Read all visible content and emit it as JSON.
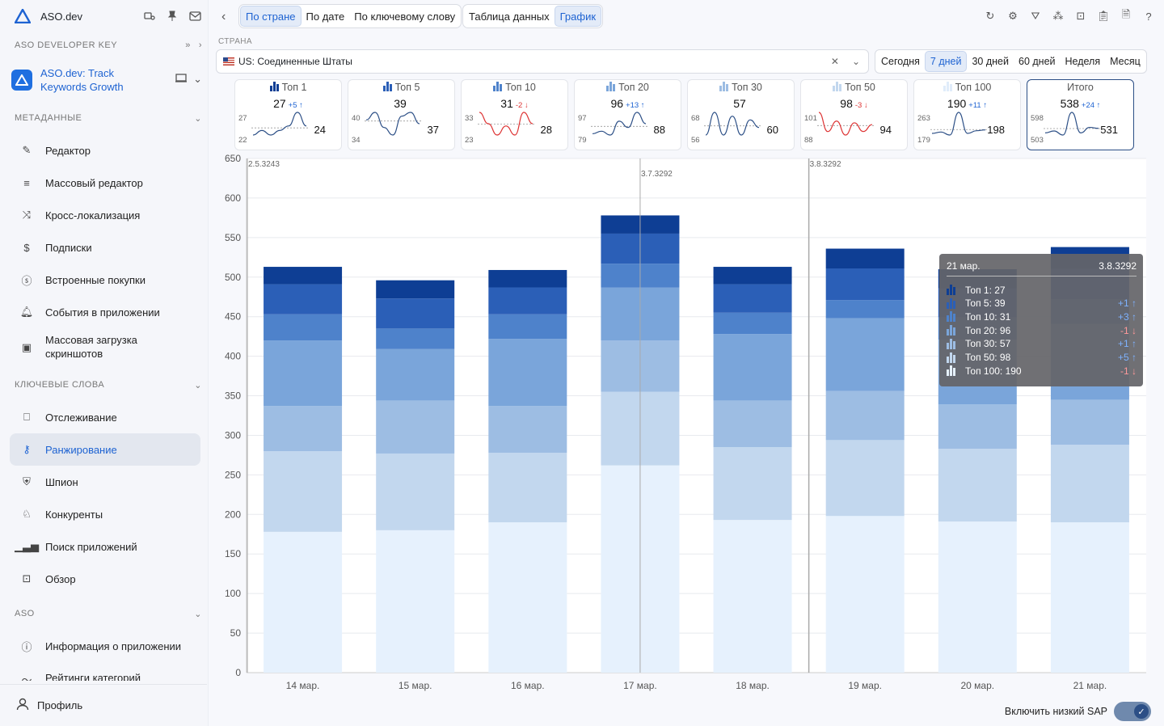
{
  "sidebar": {
    "brand": "ASO.dev",
    "dev_key_label": "ASO DEVELOPER KEY",
    "app_name": "ASO.dev: Track Keywords Growth",
    "sections": {
      "meta": "МЕТАДАННЫЕ",
      "keywords": "КЛЮЧЕВЫЕ СЛОВА",
      "aso": "ASO"
    },
    "meta_items": [
      "Редактор",
      "Массовый редактор",
      "Кросс-локализация",
      "Подписки",
      "Встроенные покупки",
      "События в приложении",
      "Массовая загрузка скриншотов"
    ],
    "keyword_items": [
      "Отслеживание",
      "Ранжирование",
      "Шпион",
      "Конкуренты",
      "Поиск приложений",
      "Обзор"
    ],
    "aso_items": [
      "Информация о приложении",
      "Рейтинги категорий"
    ],
    "profile": "Профиль"
  },
  "toolbar": {
    "view_tabs": [
      "По стране",
      "По дате",
      "По ключевому слову"
    ],
    "mode_tabs": [
      "Таблица данных",
      "График"
    ]
  },
  "filters": {
    "country_label": "СТРАНА",
    "country_value": "US: Соединенные Штаты",
    "periods": [
      "Сегодня",
      "7 дней",
      "30 дней",
      "60 дней",
      "Неделя",
      "Месяц"
    ],
    "active_period": "7 дней"
  },
  "cards": [
    {
      "title": "Топ 1",
      "value": "27",
      "delta": "+5 ↑",
      "dir": "up",
      "max": "27",
      "min": "22",
      "last": "24",
      "spark": [
        22,
        23,
        22,
        23,
        24,
        27,
        24
      ]
    },
    {
      "title": "Топ 5",
      "value": "39",
      "delta": "",
      "dir": "",
      "max": "40",
      "min": "34",
      "last": "37",
      "spark": [
        38,
        40,
        36,
        34,
        39,
        40,
        37
      ]
    },
    {
      "title": "Топ 10",
      "value": "31",
      "delta": "-2 ↓",
      "dir": "dn",
      "max": "33",
      "min": "23",
      "last": "28",
      "spark": [
        33,
        28,
        23,
        27,
        23,
        33,
        28
      ]
    },
    {
      "title": "Топ 20",
      "value": "96",
      "delta": "+13 ↑",
      "dir": "up",
      "max": "97",
      "min": "79",
      "last": "88",
      "spark": [
        80,
        82,
        79,
        90,
        85,
        97,
        88
      ]
    },
    {
      "title": "Топ 30",
      "value": "57",
      "delta": "",
      "dir": "",
      "max": "68",
      "min": "56",
      "last": "60",
      "spark": [
        56,
        68,
        56,
        66,
        56,
        64,
        60
      ]
    },
    {
      "title": "Топ 50",
      "value": "98",
      "delta": "-3 ↓",
      "dir": "dn",
      "max": "101",
      "min": "88",
      "last": "94",
      "spark": [
        101,
        90,
        96,
        88,
        95,
        90,
        94
      ]
    },
    {
      "title": "Топ 100",
      "value": "190",
      "delta": "+11 ↑",
      "dir": "up",
      "max": "263",
      "min": "179",
      "last": "198",
      "spark": [
        185,
        190,
        179,
        263,
        185,
        195,
        198
      ]
    },
    {
      "title": "Итого",
      "value": "538",
      "delta": "+24 ↑",
      "dir": "up",
      "max": "598",
      "min": "503",
      "last": "531",
      "spark": [
        512,
        520,
        503,
        598,
        512,
        535,
        531
      ]
    }
  ],
  "chart_data": {
    "type": "bar",
    "stacked": true,
    "categories": [
      "14 мар.",
      "15 мар.",
      "16 мар.",
      "17 мар.",
      "18 мар.",
      "19 мар.",
      "20 мар.",
      "21 мар."
    ],
    "ylim": [
      0,
      650
    ],
    "yticks": [
      0,
      50,
      100,
      150,
      200,
      250,
      300,
      350,
      400,
      450,
      500,
      550,
      600,
      650
    ],
    "grid": true,
    "series": [
      {
        "name": "Топ 100",
        "color": "#e6f1fd",
        "values": [
          178,
          180,
          190,
          262,
          193,
          198,
          191,
          190
        ]
      },
      {
        "name": "Топ 50",
        "color": "#c2d7ee",
        "values": [
          102,
          97,
          88,
          93,
          92,
          96,
          92,
          98
        ]
      },
      {
        "name": "Топ 30",
        "color": "#9dbde3",
        "values": [
          57,
          67,
          59,
          65,
          59,
          62,
          56,
          57
        ]
      },
      {
        "name": "Топ 20",
        "color": "#7aa5da",
        "values": [
          83,
          65,
          85,
          67,
          84,
          92,
          82,
          96
        ]
      },
      {
        "name": "Топ 10",
        "color": "#4e82cb",
        "values": [
          33,
          26,
          31,
          30,
          27,
          23,
          28,
          31
        ]
      },
      {
        "name": "Топ 5",
        "color": "#2b5fb7",
        "values": [
          38,
          38,
          34,
          38,
          36,
          40,
          37,
          39
        ]
      },
      {
        "name": "Топ 1",
        "color": "#0e3e94",
        "values": [
          22,
          23,
          22,
          23,
          22,
          25,
          24,
          27
        ]
      }
    ],
    "annotations": [
      {
        "label": "2.5.3243",
        "at": "14 мар."
      },
      {
        "label": "3.7.3292",
        "at": "17 мар."
      },
      {
        "label": "3.8.3292",
        "at": "19 мар."
      }
    ]
  },
  "tooltip": {
    "date": "21 мар.",
    "version": "3.8.3292",
    "rows": [
      {
        "label": "Топ 1: 27",
        "change": "",
        "dir": ""
      },
      {
        "label": "Топ 5: 39",
        "change": "+1 ↑",
        "dir": "pos"
      },
      {
        "label": "Топ 10: 31",
        "change": "+3 ↑",
        "dir": "pos"
      },
      {
        "label": "Топ 20: 96",
        "change": "-1 ↓",
        "dir": "neg"
      },
      {
        "label": "Топ 30: 57",
        "change": "+1 ↑",
        "dir": "pos"
      },
      {
        "label": "Топ 50: 98",
        "change": "+5 ↑",
        "dir": "pos"
      },
      {
        "label": "Топ 100: 190",
        "change": "-1 ↓",
        "dir": "neg"
      }
    ]
  },
  "footer": {
    "low_sap_label": "Включить низкий SAP",
    "low_sap_on": true
  }
}
